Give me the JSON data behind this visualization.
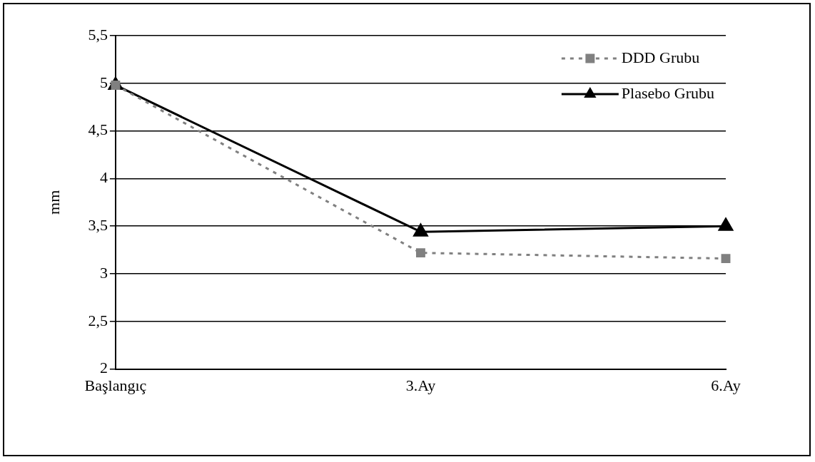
{
  "chart_data": {
    "type": "line",
    "ylabel": "mm",
    "categories": [
      "Başlangıç",
      "3.Ay",
      "6.Ay"
    ],
    "series": [
      {
        "name": "DDD Grubu",
        "color": "#808080",
        "values": [
          4.98,
          3.22,
          3.16
        ],
        "marker": "square",
        "line_style": "dotted"
      },
      {
        "name": "Plasebo Grubu",
        "color": "#000000",
        "values": [
          4.98,
          3.44,
          3.5
        ],
        "marker": "triangle",
        "line_style": "solid"
      }
    ],
    "ylim": [
      2,
      5.5
    ],
    "yticks": [
      2,
      {
        "value": 2.5,
        "label": "2,5"
      },
      3,
      {
        "value": 3.5,
        "label": "3,5"
      },
      4,
      {
        "value": 4.5,
        "label": "4,5"
      },
      5,
      {
        "value": 5.5,
        "label": "5,5"
      }
    ],
    "grid": "y",
    "legend": "top right"
  }
}
